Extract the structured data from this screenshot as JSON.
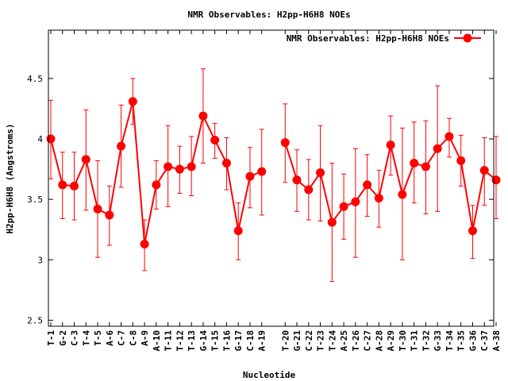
{
  "chart_data": {
    "type": "line",
    "title": "NMR Observables: H2pp-H6H8 NOEs",
    "xlabel": "Nucleotide",
    "ylabel": "H2pp-H6H8 (Angstroms)",
    "ylim": [
      2.45,
      4.9
    ],
    "yticks": [
      2.5,
      3,
      3.5,
      4,
      4.5
    ],
    "ytick_labels": [
      "2.5",
      "3",
      "3.5",
      "4",
      "4.5"
    ],
    "grid": false,
    "legend_position": "top-right",
    "series": [
      {
        "name": "NMR Observables: H2pp-H6H8 NOEs",
        "color": "#ff0000",
        "marker": "circle",
        "segments": [
          {
            "x": [
              "T-1",
              "G-2",
              "C-3",
              "T-4",
              "T-5",
              "A-6",
              "C-7",
              "C-8",
              "A-9",
              "A-10",
              "T-11",
              "T-12",
              "T-13",
              "G-14",
              "T-15",
              "T-16",
              "G-17",
              "C-18",
              "A-19"
            ],
            "values": [
              4.0,
              3.62,
              3.61,
              3.83,
              3.42,
              3.37,
              3.94,
              4.31,
              3.13,
              3.62,
              3.77,
              3.75,
              3.77,
              4.19,
              3.99,
              3.8,
              3.24,
              3.69,
              3.73
            ],
            "err_low": [
              3.67,
              3.34,
              3.33,
              3.41,
              3.02,
              3.12,
              3.6,
              4.12,
              2.91,
              3.42,
              3.44,
              3.55,
              3.53,
              3.8,
              3.84,
              3.58,
              3.0,
              3.43,
              3.37
            ],
            "err_high": [
              4.32,
              3.89,
              3.89,
              4.24,
              3.82,
              3.61,
              4.28,
              4.5,
              3.33,
              3.82,
              4.11,
              3.94,
              4.02,
              4.58,
              4.13,
              4.01,
              3.47,
              3.93,
              4.08
            ]
          },
          {
            "x": [
              "T-20",
              "G-21",
              "C-22",
              "T-23",
              "T-24",
              "A-25",
              "T-26",
              "C-27",
              "A-28",
              "A-29",
              "T-30",
              "T-31",
              "T-32",
              "G-33",
              "T-34",
              "T-35",
              "G-36",
              "C-37",
              "A-38"
            ],
            "values": [
              3.97,
              3.66,
              3.58,
              3.72,
              3.31,
              3.44,
              3.48,
              3.62,
              3.51,
              3.95,
              3.54,
              3.8,
              3.77,
              3.92,
              4.02,
              3.82,
              3.24,
              3.74,
              3.66
            ],
            "err_low": [
              3.64,
              3.4,
              3.33,
              3.32,
              2.82,
              3.17,
              3.02,
              3.36,
              3.27,
              3.7,
              3.0,
              3.47,
              3.38,
              3.4,
              3.85,
              3.61,
              3.01,
              3.45,
              3.34
            ],
            "err_high": [
              4.29,
              3.91,
              3.83,
              4.11,
              3.8,
              3.71,
              3.92,
              3.87,
              3.74,
              4.19,
              4.09,
              4.14,
              4.15,
              4.44,
              4.17,
              4.03,
              3.45,
              4.01,
              4.02
            ]
          }
        ]
      }
    ]
  }
}
